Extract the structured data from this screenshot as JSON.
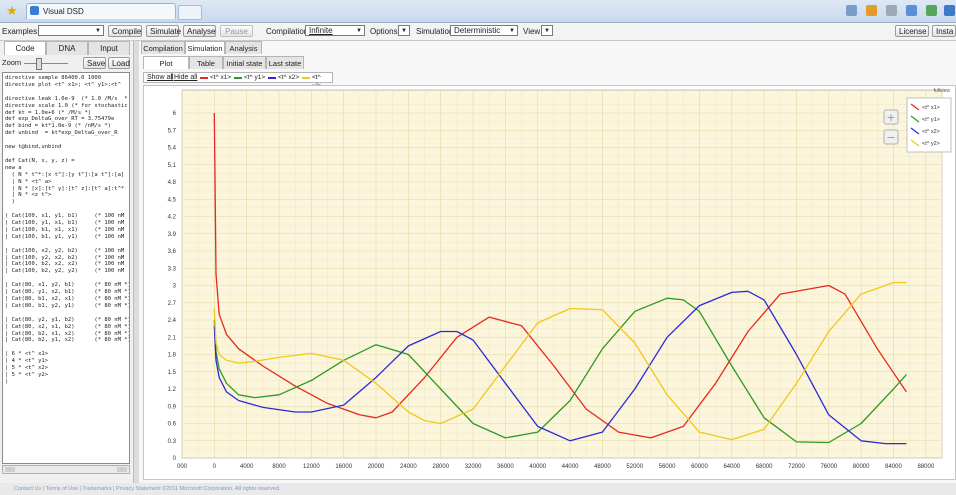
{
  "browser": {
    "tab_title": "Visual DSD"
  },
  "toolbar": {
    "examples_label": "Examples:",
    "examples_value": "",
    "compile": "Compile",
    "simulate": "Simulate",
    "analyse": "Analyse",
    "pause": "Pause",
    "compilation_label": "Compilation:",
    "compilation_value": "Infinite",
    "options_label": "Options:",
    "simulation_label": "Simulation:",
    "simulation_value": "Deterministic",
    "view_label": "View:",
    "license": "License",
    "install": "Insta"
  },
  "left": {
    "tabs": [
      "Code",
      "DNA",
      "Input"
    ],
    "zoom_label": "Zoom",
    "save": "Save",
    "load": "Load",
    "code_lines": [
      "directive sample 86400.0 1000",
      "directive plot <t^ x1>; <t^ y1>;<t^",
      "",
      "directive leak 1.0e-9  (* 1.0 /M/s  * 1",
      "directive scale 1.0 (* for stochastic sir",
      "def kt = 1.0e+6 (* /M/s *)",
      "def exp_DeltaG_over_RT = 3.75479e",
      "def bind = kt*1.0e-9 (* /nM/s *)",
      "def unbind  = kt*exp_DeltaG_over_R",
      "",
      "new t@bind,unbind",
      "",
      "def Cat(N, x, y, z) =",
      "new a",
      "  ( N * t^*:[x t^]:[y t^]:[a t^]:[a]",
      "  | N * <t^ a>",
      "  | N * [x]:[t^ y]:[t^ z]:[t^ a]:t^*",
      "  | N * <z t^>",
      "  )",
      "",
      "( Cat(100, x1, y1, b1)     (* 100 nM",
      "| Cat(100, y1, x1, b1)     (* 100 nM",
      "| Cat(100, b1, x1, x1)     (* 100 nM",
      "| Cat(100, b1, y1, y1)     (* 100 nM",
      "",
      "| Cat(100, x2, y2, b2)     (* 100 nM",
      "| Cat(100, y2, x2, b2)     (* 100 nM",
      "| Cat(100, b2, x2, x2)     (* 100 nM",
      "| Cat(100, b2, y2, y2)     (* 100 nM",
      "",
      "| Cat(80, x1, y2, b1)      (* 80 nM *)",
      "| Cat(80, y1, x2, b1)      (* 80 nM *)",
      "| Cat(80, b1, x2, x1)      (* 80 nM *)",
      "| Cat(80, b1, y2, y1)      (* 80 nM *)",
      "",
      "| Cat(80, y2, y1, b2)      (* 80 nM *)",
      "| Cat(80, x2, x1, b2)      (* 80 nM *)",
      "| Cat(80, b2, x1, x2)      (* 80 nM *)",
      "| Cat(80, b2, y1, x2)      (* 80 nM *)",
      "",
      "| 6 * <t^ x1>",
      "| 4 * <t^ y1>",
      "| 5 * <t^ x2>",
      "| 5 * <t^ y2>",
      ")"
    ]
  },
  "right": {
    "top_tabs": [
      "Compilation",
      "Simulation",
      "Analysis"
    ],
    "sub_tabs": [
      "Plot",
      "Table",
      "Initial state",
      "Last state"
    ],
    "show_all": "Show all",
    "hide_all": "Hide all",
    "series_toggles": [
      "<t^ x1>",
      "<t^ y1>",
      "<t^ x2>",
      "<t^ y2>"
    ],
    "fullview": "fullview"
  },
  "footer": "Contact Us  |  Terms of Use  |  Trademarks  |  Privacy Statement  ©2011 Microsoft Corporation. All rights reserved.",
  "chart_data": {
    "type": "line",
    "title": "",
    "xlabel": "",
    "ylabel": "",
    "xlim": [
      -4000,
      90000
    ],
    "ylim": [
      0,
      6.4
    ],
    "xticks": [
      "000",
      "0",
      "4000",
      "8000",
      "12000",
      "16000",
      "20000",
      "24000",
      "28000",
      "32000",
      "36000",
      "40000",
      "44000",
      "48000",
      "52000",
      "56000",
      "60000",
      "64000",
      "68000",
      "72000",
      "76000",
      "80000",
      "84000",
      "88000"
    ],
    "yticks": [
      "0",
      "0.3",
      "0.6",
      "0.9",
      "1.2",
      "1.5",
      "1.8",
      "2.1",
      "2.4",
      "2.7",
      "3",
      "3.3",
      "3.6",
      "3.9",
      "4.2",
      "4.5",
      "4.8",
      "5.1",
      "5.4",
      "5.7",
      "6"
    ],
    "grid": true,
    "legend_position": "top-right",
    "series": [
      {
        "name": "<t^ x1>",
        "color": "#e8281f",
        "x": [
          0,
          200,
          600,
          1500,
          3000,
          6000,
          10000,
          14000,
          18000,
          20000,
          22000,
          26000,
          30000,
          34000,
          38000,
          42000,
          46000,
          50000,
          54000,
          58000,
          62000,
          66000,
          70000,
          74000,
          76000,
          78000,
          82000,
          85600
        ],
        "y": [
          6.0,
          3.2,
          2.5,
          2.15,
          1.9,
          1.6,
          1.25,
          0.95,
          0.75,
          0.7,
          0.8,
          1.4,
          2.1,
          2.45,
          2.3,
          1.6,
          0.85,
          0.45,
          0.35,
          0.55,
          1.3,
          2.2,
          2.85,
          2.95,
          3.0,
          2.85,
          1.9,
          1.15
        ]
      },
      {
        "name": "<t^ y1>",
        "color": "#2c9a24",
        "x": [
          0,
          200,
          600,
          1500,
          3000,
          5000,
          8000,
          12000,
          16000,
          20000,
          24000,
          28000,
          32000,
          36000,
          40000,
          44000,
          48000,
          52000,
          56000,
          58000,
          60000,
          64000,
          68000,
          72000,
          76000,
          80000,
          84000,
          85600
        ],
        "y": [
          2.4,
          1.85,
          1.55,
          1.3,
          1.1,
          1.05,
          1.1,
          1.35,
          1.7,
          1.97,
          1.8,
          1.2,
          0.6,
          0.35,
          0.45,
          1.0,
          1.9,
          2.55,
          2.78,
          2.75,
          2.55,
          1.6,
          0.7,
          0.28,
          0.27,
          0.6,
          1.2,
          1.45
        ]
      },
      {
        "name": "<t^ x2>",
        "color": "#2a2ad8",
        "x": [
          0,
          200,
          600,
          1500,
          3000,
          6000,
          10000,
          12000,
          16000,
          20000,
          24000,
          28000,
          30000,
          32000,
          36000,
          40000,
          44000,
          48000,
          52000,
          56000,
          60000,
          64000,
          66000,
          68000,
          72000,
          76000,
          80000,
          83000,
          85600
        ],
        "y": [
          2.3,
          1.7,
          1.4,
          1.15,
          1.0,
          0.88,
          0.8,
          0.8,
          0.92,
          1.4,
          1.95,
          2.2,
          2.2,
          2.05,
          1.3,
          0.55,
          0.3,
          0.45,
          1.2,
          2.1,
          2.65,
          2.88,
          2.9,
          2.75,
          1.8,
          0.75,
          0.3,
          0.25,
          0.25
        ]
      },
      {
        "name": "<t^ y2>",
        "color": "#f2c81a",
        "x": [
          0,
          200,
          600,
          1500,
          3000,
          5000,
          8000,
          12000,
          16000,
          20000,
          24000,
          26000,
          28000,
          32000,
          36000,
          40000,
          44000,
          48000,
          52000,
          56000,
          60000,
          64000,
          68000,
          72000,
          76000,
          80000,
          84000,
          85600
        ],
        "y": [
          2.6,
          2.0,
          1.8,
          1.7,
          1.65,
          1.68,
          1.75,
          1.82,
          1.7,
          1.3,
          0.8,
          0.65,
          0.6,
          0.85,
          1.6,
          2.35,
          2.6,
          2.58,
          2.0,
          1.1,
          0.45,
          0.32,
          0.5,
          1.3,
          2.2,
          2.85,
          3.05,
          3.05
        ]
      }
    ]
  }
}
